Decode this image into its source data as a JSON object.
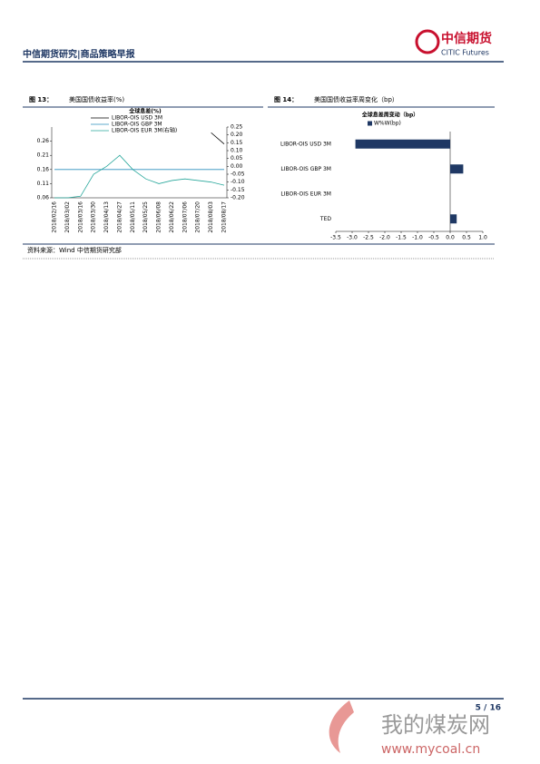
{
  "header": {
    "title": "中信期货研究|商品策略早报",
    "logo_cn": "中信期货",
    "logo_en": "CITIC Futures"
  },
  "figures": [
    {
      "number": "图 13：",
      "title": "美国国债收益率(%)"
    },
    {
      "number": "图 14：",
      "title": "美国国债收益率周变化（bp）"
    }
  ],
  "source": "资料来源：Wind  中信期货研究部",
  "page_number": "5 / 16",
  "watermark": {
    "cn": "我的煤炭网",
    "url": "www.mycoal.cn"
  },
  "chart_data": [
    {
      "type": "line",
      "title": "全球息差(%)",
      "categories": [
        "2018/02/16",
        "2018/03/02",
        "2018/03/16",
        "2018/03/30",
        "2018/04/13",
        "2018/04/27",
        "2018/05/11",
        "2018/05/25",
        "2018/06/08",
        "2018/06/22",
        "2018/07/06",
        "2018/07/20",
        "2018/08/03",
        "2018/08/17"
      ],
      "series": [
        {
          "name": "LIBOR-OIS USD 3M",
          "color": "#000000",
          "values": [
            null,
            null,
            null,
            null,
            null,
            null,
            null,
            null,
            null,
            null,
            null,
            null,
            0.29,
            0.25
          ]
        },
        {
          "name": "LIBOR-OIS GBP 3M",
          "color": "#2a8fbd",
          "values": [
            0.16,
            0.16,
            0.16,
            0.16,
            0.16,
            0.16,
            0.16,
            0.16,
            0.16,
            0.16,
            0.16,
            0.16,
            0.16,
            0.16
          ]
        },
        {
          "name": "LIBOR-OIS EUR 3M(右轴)",
          "color": "#26a69a",
          "axis": "y2",
          "values": [
            -0.2,
            -0.2,
            -0.19,
            -0.05,
            0.0,
            0.07,
            -0.02,
            -0.08,
            -0.11,
            -0.09,
            -0.08,
            -0.09,
            -0.1,
            -0.12
          ]
        }
      ],
      "ylim": [
        0.06,
        0.31
      ],
      "yticks": [
        0.06,
        0.11,
        0.16,
        0.21,
        0.26
      ],
      "y2lim": [
        -0.2,
        0.25
      ],
      "y2ticks": [
        {
          "value": -0.2,
          "label": "-0.20"
        },
        -0.15,
        {
          "value": -0.1,
          "label": "-0.10"
        },
        -0.05,
        {
          "value": 0,
          "label": "0.00"
        },
        0.05,
        {
          "value": 0.1,
          "label": "0.10"
        },
        0.15,
        {
          "value": 0.2,
          "label": "0.20"
        },
        0.25
      ]
    },
    {
      "type": "hbar",
      "title": "全球息差周变动（bp）",
      "categories": [
        "LIBOR-OIS USD 3M",
        "LIBOR-OIS GBP 3M",
        "LIBOR-OIS EUR 3M",
        "TED"
      ],
      "series": [
        {
          "name": "W%W(bp)",
          "color": "#1f3864",
          "values": [
            -2.9,
            0.4,
            0,
            0.2
          ]
        }
      ],
      "xlim": [
        -3.5,
        1.0
      ],
      "xticks": [
        {
          "value": -3.5,
          "label": "-3.5"
        },
        {
          "value": -3,
          "label": "-3.0"
        },
        -2.5,
        {
          "value": -2,
          "label": "-2.0"
        },
        -1.5,
        {
          "value": -1,
          "label": "-1.0"
        },
        -0.5,
        {
          "value": 0,
          "label": "0.0"
        },
        0.5,
        {
          "value": 1,
          "label": "1.0"
        }
      ]
    }
  ]
}
